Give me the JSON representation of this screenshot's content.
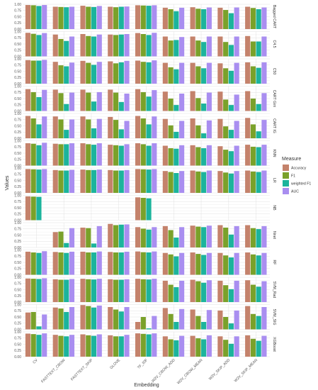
{
  "chart_data": {
    "type": "bar",
    "xlabel": "Embedding",
    "ylabel": "Values",
    "ylim": [
      0,
      1
    ],
    "yticks": [
      "0.00",
      "0.25",
      "0.50",
      "0.75",
      "1.00"
    ],
    "grid": true,
    "legend_title": "Measure",
    "legend_position": "right",
    "measures": [
      {
        "name": "Accuracy",
        "color": "#c4826b"
      },
      {
        "name": "F1",
        "color": "#7aa12a"
      },
      {
        "name": "weighted F1",
        "color": "#1cb49c"
      },
      {
        "name": "AUC",
        "color": "#a98ef0"
      }
    ],
    "categories": [
      "CV",
      "FASTTEXT_CBOW",
      "FASTTEXT_SKIP",
      "GLOVE",
      "TF_IDF",
      "W2V_CBOW_ADD",
      "W2V_CBOW_MEAN",
      "W2V_SKIP_ADD",
      "W2V_SKIP_MEAN"
    ],
    "panels": [
      {
        "name": "Bagged CART",
        "values": [
          [
            0.97,
            0.96,
            0.93,
            0.97
          ],
          [
            0.9,
            0.89,
            0.88,
            0.9
          ],
          [
            0.94,
            0.9,
            0.89,
            0.93
          ],
          [
            0.9,
            0.88,
            0.9,
            0.91
          ],
          [
            0.96,
            0.95,
            0.94,
            0.96
          ],
          [
            0.86,
            0.8,
            0.72,
            0.86
          ],
          [
            0.88,
            0.82,
            0.8,
            0.87
          ],
          [
            0.86,
            0.77,
            0.64,
            0.87
          ],
          [
            0.9,
            0.85,
            0.8,
            0.87
          ]
        ]
      },
      {
        "name": "C4.5",
        "values": [
          [
            0.95,
            0.91,
            0.86,
            0.94
          ],
          [
            0.88,
            0.7,
            0.62,
            0.8
          ],
          [
            0.9,
            0.82,
            0.8,
            0.88
          ],
          [
            0.88,
            0.86,
            0.88,
            0.9
          ],
          [
            0.94,
            0.9,
            0.86,
            0.95
          ],
          [
            0.8,
            0.64,
            0.66,
            0.78
          ],
          [
            0.8,
            0.64,
            0.58,
            0.8
          ],
          [
            0.8,
            0.58,
            0.46,
            0.8
          ],
          [
            0.82,
            0.6,
            0.6,
            0.8
          ]
        ]
      },
      {
        "name": "C50",
        "values": [
          [
            0.95,
            0.93,
            0.93,
            0.96
          ],
          [
            0.88,
            0.74,
            0.7,
            0.85
          ],
          [
            0.92,
            0.84,
            0.76,
            0.88
          ],
          [
            0.9,
            0.82,
            0.86,
            0.92
          ],
          [
            0.93,
            0.88,
            0.86,
            0.94
          ],
          [
            0.84,
            0.66,
            0.58,
            0.84
          ],
          [
            0.84,
            0.7,
            0.62,
            0.84
          ],
          [
            0.82,
            0.62,
            0.52,
            0.84
          ],
          [
            0.86,
            0.7,
            0.64,
            0.86
          ]
        ]
      },
      {
        "name": "CART Gini",
        "values": [
          [
            0.88,
            0.76,
            0.56,
            0.85
          ],
          [
            0.86,
            0.72,
            0.28,
            0.74
          ],
          [
            0.86,
            0.74,
            0.38,
            0.76
          ],
          [
            0.86,
            0.74,
            0.36,
            0.7
          ],
          [
            0.88,
            0.76,
            0.58,
            0.84
          ],
          [
            0.78,
            0.5,
            0.24,
            0.7
          ],
          [
            0.8,
            0.52,
            0.3,
            0.74
          ],
          [
            0.78,
            0.46,
            0.24,
            0.66
          ],
          [
            0.8,
            0.5,
            0.28,
            0.72
          ]
        ]
      },
      {
        "name": "CART IG",
        "values": [
          [
            0.9,
            0.8,
            0.56,
            0.88
          ],
          [
            0.88,
            0.76,
            0.34,
            0.76
          ],
          [
            0.88,
            0.76,
            0.4,
            0.78
          ],
          [
            0.86,
            0.74,
            0.36,
            0.7
          ],
          [
            0.9,
            0.8,
            0.56,
            0.88
          ],
          [
            0.78,
            0.52,
            0.26,
            0.7
          ],
          [
            0.8,
            0.52,
            0.2,
            0.72
          ],
          [
            0.78,
            0.48,
            0.34,
            0.7
          ],
          [
            0.82,
            0.56,
            0.28,
            0.74
          ]
        ]
      },
      {
        "name": "KNN",
        "values": [
          [
            0.9,
            0.88,
            0.82,
            0.92
          ],
          [
            0.88,
            0.86,
            0.86,
            0.9
          ],
          [
            0.9,
            0.86,
            0.84,
            0.9
          ],
          [
            0.84,
            0.82,
            0.8,
            0.86
          ],
          [
            0.9,
            0.86,
            0.8,
            0.9
          ],
          [
            0.8,
            0.7,
            0.68,
            0.82
          ],
          [
            0.82,
            0.74,
            0.7,
            0.82
          ],
          [
            0.78,
            0.64,
            0.58,
            0.8
          ],
          [
            0.84,
            0.76,
            0.74,
            0.84
          ]
        ]
      },
      {
        "name": "LR",
        "values": [
          [
            0.96,
            0.95,
            0.94,
            0.96
          ],
          [
            0.92,
            0.9,
            0.9,
            0.93
          ],
          [
            0.94,
            0.92,
            0.92,
            0.94
          ],
          [
            0.92,
            0.9,
            0.9,
            0.92
          ],
          [
            0.96,
            0.95,
            0.94,
            0.96
          ],
          [
            0.88,
            0.84,
            0.8,
            0.88
          ],
          [
            0.9,
            0.86,
            0.84,
            0.9
          ],
          [
            0.88,
            0.82,
            0.78,
            0.88
          ],
          [
            0.9,
            0.86,
            0.84,
            0.9
          ]
        ]
      },
      {
        "name": "NB",
        "values": [
          [
            0.96,
            0.95,
            0.94,
            0
          ],
          [
            0,
            0,
            0,
            0
          ],
          [
            0,
            0,
            0,
            0
          ],
          [
            0,
            0,
            0,
            0
          ],
          [
            0.92,
            0.9,
            0.88,
            0
          ],
          [
            0,
            0,
            0,
            0
          ],
          [
            0,
            0,
            0,
            0
          ],
          [
            0,
            0,
            0,
            0
          ],
          [
            0,
            0,
            0,
            0
          ]
        ]
      },
      {
        "name": "Nnet",
        "values": [
          [
            0,
            0,
            0,
            0
          ],
          [
            0.62,
            0.64,
            0.18,
            0.78
          ],
          [
            0.8,
            0.78,
            0.16,
            0.86
          ],
          [
            0.95,
            0.9,
            0.92,
            0.93
          ],
          [
            0.82,
            0.76,
            0.72,
            0.82
          ],
          [
            0.86,
            0.7,
            0.4,
            0.82
          ],
          [
            0.88,
            0.84,
            0.82,
            0.88
          ],
          [
            0.9,
            0.8,
            0.52,
            0.86
          ],
          [
            0.9,
            0.78,
            0.74,
            0.86
          ]
        ]
      },
      {
        "name": "RF",
        "values": [
          [
            0.93,
            0.9,
            0.88,
            0.95
          ],
          [
            0.92,
            0.9,
            0.88,
            0.93
          ],
          [
            0.93,
            0.9,
            0.9,
            0.94
          ],
          [
            0.92,
            0.9,
            0.9,
            0.93
          ],
          [
            0.94,
            0.91,
            0.9,
            0.94
          ],
          [
            0.88,
            0.82,
            0.74,
            0.88
          ],
          [
            0.9,
            0.84,
            0.8,
            0.88
          ],
          [
            0.88,
            0.78,
            0.7,
            0.88
          ],
          [
            0.9,
            0.82,
            0.78,
            0.88
          ]
        ]
      },
      {
        "name": "SVM_Rad",
        "values": [
          [
            0.95,
            0.94,
            0.93,
            0.96
          ],
          [
            0.92,
            0.9,
            0.9,
            0.93
          ],
          [
            0.94,
            0.92,
            0.91,
            0.94
          ],
          [
            0.92,
            0.9,
            0.9,
            0.92
          ],
          [
            0.94,
            0.92,
            0.91,
            0.94
          ],
          [
            0.86,
            0.7,
            0.6,
            0.86
          ],
          [
            0.9,
            0.84,
            0.78,
            0.88
          ],
          [
            0.86,
            0.68,
            0.52,
            0.86
          ],
          [
            0.88,
            0.7,
            0.62,
            0.84
          ]
        ]
      },
      {
        "name": "SVM_SIG",
        "values": [
          [
            0.68,
            0.7,
            0.12,
            0.6
          ],
          [
            0.88,
            0.84,
            0.7,
            0.9
          ],
          [
            0.98,
            0.94,
            0.88,
            0.96
          ],
          [
            0.9,
            0.8,
            0.72,
            0.9
          ],
          [
            0.3,
            0.5,
            0.04,
            0.54
          ],
          [
            0.86,
            0.62,
            0.3,
            0.82
          ],
          [
            0.8,
            0.54,
            0.3,
            0.78
          ],
          [
            0.76,
            0.5,
            0.24,
            0.76
          ],
          [
            0.94,
            0.62,
            0.54,
            0.9
          ]
        ]
      },
      {
        "name": "XGBoost",
        "values": [
          [
            0.93,
            0.91,
            0.88,
            0.94
          ],
          [
            0.88,
            0.84,
            0.82,
            0.88
          ],
          [
            0.9,
            0.86,
            0.84,
            0.9
          ],
          [
            0.86,
            0.82,
            0.82,
            0.88
          ],
          [
            0.94,
            0.92,
            0.9,
            0.94
          ],
          [
            0.82,
            0.7,
            0.66,
            0.84
          ],
          [
            0.84,
            0.74,
            0.7,
            0.86
          ],
          [
            0.82,
            0.68,
            0.52,
            0.82
          ],
          [
            0.86,
            0.72,
            0.64,
            0.84
          ]
        ]
      }
    ]
  }
}
